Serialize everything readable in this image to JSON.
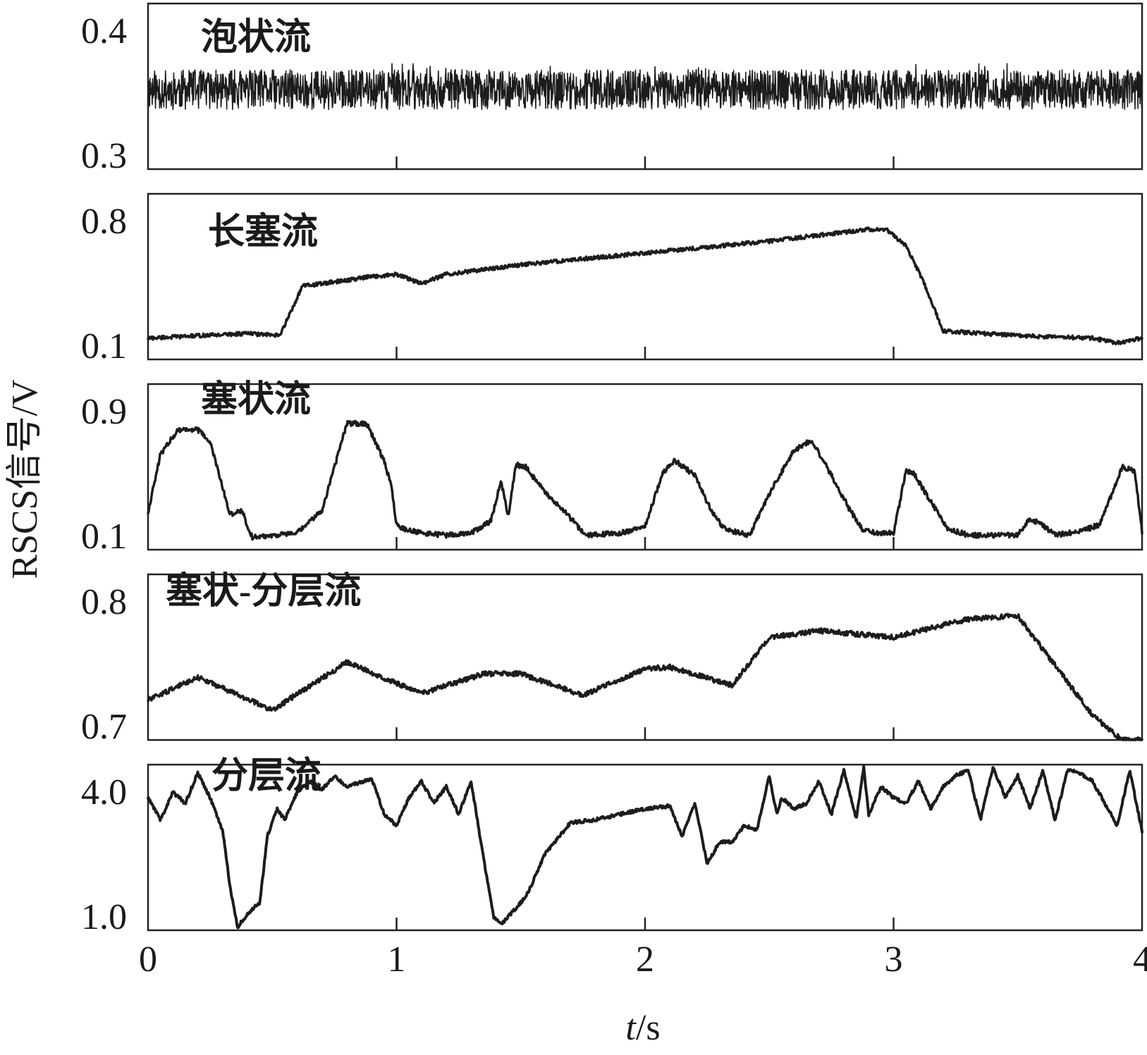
{
  "chart_data": {
    "type": "line",
    "ylabel": "RSCS信号/V",
    "xlabel": {
      "italic": "t",
      "rest": "/s"
    },
    "xlim": [
      0,
      4
    ],
    "xticks": [
      0,
      1,
      2,
      3,
      4
    ],
    "xtick_labels": [
      "0",
      "1",
      "2",
      "3",
      "4"
    ],
    "grid": false,
    "panels": [
      {
        "name": "泡状流",
        "ylim": [
          0.3,
          0.4
        ],
        "ytick_labels": [
          "0.3",
          "0.4"
        ],
        "kind": "noise",
        "noise": {
          "base": 0.348,
          "amplitude": 0.012,
          "spike_max": 0.363,
          "seed": 11
        }
      },
      {
        "name": "长塞流",
        "ylim": [
          0.1,
          0.8
        ],
        "ytick_labels": [
          "0.1",
          "0.8"
        ],
        "kind": "line",
        "noise": 0.008,
        "x": [
          0,
          0.2,
          0.4,
          0.53,
          0.6,
          0.62,
          0.7,
          0.9,
          1.0,
          1.05,
          1.1,
          1.2,
          1.5,
          2.0,
          2.5,
          2.9,
          2.97,
          3.05,
          3.12,
          3.2,
          3.5,
          3.8,
          3.9,
          4.0
        ],
        "y": [
          0.19,
          0.2,
          0.21,
          0.2,
          0.36,
          0.41,
          0.42,
          0.45,
          0.46,
          0.44,
          0.42,
          0.46,
          0.5,
          0.55,
          0.6,
          0.65,
          0.65,
          0.58,
          0.43,
          0.22,
          0.2,
          0.19,
          0.17,
          0.19
        ]
      },
      {
        "name": "塞状流",
        "ylim": [
          0.1,
          0.9
        ],
        "ytick_labels": [
          "0.1",
          "0.9"
        ],
        "kind": "line",
        "noise": 0.012,
        "x": [
          0,
          0.05,
          0.12,
          0.2,
          0.25,
          0.3,
          0.33,
          0.38,
          0.4,
          0.42,
          0.5,
          0.6,
          0.7,
          0.8,
          0.88,
          0.95,
          0.98,
          1.0,
          1.03,
          1.1,
          1.2,
          1.3,
          1.38,
          1.42,
          1.45,
          1.48,
          1.52,
          1.6,
          1.68,
          1.76,
          1.9,
          2.0,
          2.07,
          2.12,
          2.2,
          2.27,
          2.32,
          2.42,
          2.5,
          2.6,
          2.67,
          2.75,
          2.82,
          2.88,
          2.95,
          3.0,
          3.05,
          3.08,
          3.15,
          3.22,
          3.3,
          3.5,
          3.55,
          3.6,
          3.65,
          3.75,
          3.83,
          3.92,
          3.97,
          4.0
        ],
        "y": [
          0.28,
          0.56,
          0.68,
          0.68,
          0.62,
          0.4,
          0.27,
          0.29,
          0.21,
          0.16,
          0.17,
          0.18,
          0.29,
          0.71,
          0.71,
          0.53,
          0.4,
          0.22,
          0.2,
          0.18,
          0.17,
          0.18,
          0.24,
          0.43,
          0.26,
          0.51,
          0.5,
          0.37,
          0.28,
          0.17,
          0.18,
          0.21,
          0.47,
          0.53,
          0.46,
          0.28,
          0.2,
          0.17,
          0.37,
          0.58,
          0.63,
          0.46,
          0.3,
          0.19,
          0.18,
          0.18,
          0.48,
          0.47,
          0.33,
          0.2,
          0.17,
          0.17,
          0.25,
          0.22,
          0.17,
          0.19,
          0.22,
          0.5,
          0.48,
          0.19
        ]
      },
      {
        "name": "塞状-分层流",
        "ylim": [
          0.7,
          0.8
        ],
        "ytick_labels": [
          "0.7",
          "0.8"
        ],
        "kind": "line",
        "noise": 0.0015,
        "x": [
          0,
          0.2,
          0.35,
          0.5,
          0.8,
          1.1,
          1.35,
          1.5,
          1.75,
          2.0,
          2.1,
          2.35,
          2.5,
          2.7,
          3.0,
          3.3,
          3.5,
          3.8,
          3.92
        ],
        "y": [
          0.724,
          0.738,
          0.728,
          0.718,
          0.747,
          0.728,
          0.74,
          0.74,
          0.727,
          0.743,
          0.744,
          0.733,
          0.762,
          0.766,
          0.762,
          0.773,
          0.775,
          0.715,
          0.7
        ]
      },
      {
        "name": "分层流",
        "ylim": [
          1.0,
          4.0
        ],
        "ytick_labels": [
          "1.0",
          "4.0"
        ],
        "kind": "line",
        "noise": 0.03,
        "x": [
          0,
          0.05,
          0.1,
          0.15,
          0.2,
          0.25,
          0.3,
          0.33,
          0.36,
          0.4,
          0.45,
          0.48,
          0.52,
          0.55,
          0.6,
          0.65,
          0.7,
          0.75,
          0.8,
          0.9,
          0.95,
          1.0,
          1.05,
          1.1,
          1.15,
          1.2,
          1.25,
          1.3,
          1.35,
          1.39,
          1.42,
          1.46,
          1.52,
          1.6,
          1.7,
          1.8,
          1.9,
          2.0,
          2.1,
          2.15,
          2.2,
          2.25,
          2.3,
          2.35,
          2.4,
          2.45,
          2.5,
          2.53,
          2.55,
          2.6,
          2.65,
          2.7,
          2.75,
          2.8,
          2.85,
          2.88,
          2.9,
          2.93,
          2.95,
          3.0,
          3.05,
          3.1,
          3.15,
          3.2,
          3.25,
          3.3,
          3.35,
          3.4,
          3.45,
          3.5,
          3.55,
          3.6,
          3.65,
          3.7,
          3.75,
          3.8,
          3.85,
          3.9,
          3.95,
          4.0
        ],
        "y": [
          3.4,
          3.0,
          3.5,
          3.3,
          3.85,
          3.4,
          2.8,
          1.8,
          1.05,
          1.3,
          1.5,
          2.7,
          3.2,
          3.0,
          3.5,
          3.7,
          3.55,
          3.8,
          3.6,
          3.75,
          3.1,
          2.9,
          3.4,
          3.7,
          3.3,
          3.6,
          3.1,
          3.7,
          2.3,
          1.25,
          1.1,
          1.3,
          1.6,
          2.4,
          2.95,
          3.0,
          3.1,
          3.2,
          3.25,
          2.7,
          3.3,
          2.2,
          2.6,
          2.6,
          2.9,
          2.8,
          3.8,
          3.1,
          3.4,
          3.2,
          3.3,
          3.7,
          3.1,
          3.9,
          3.0,
          3.95,
          3.1,
          3.4,
          3.6,
          3.4,
          3.3,
          3.7,
          3.2,
          3.6,
          3.8,
          3.9,
          3.0,
          3.95,
          3.4,
          3.8,
          3.2,
          3.9,
          3.0,
          3.9,
          3.85,
          3.7,
          3.3,
          2.9,
          3.9,
          2.8
        ]
      }
    ]
  }
}
